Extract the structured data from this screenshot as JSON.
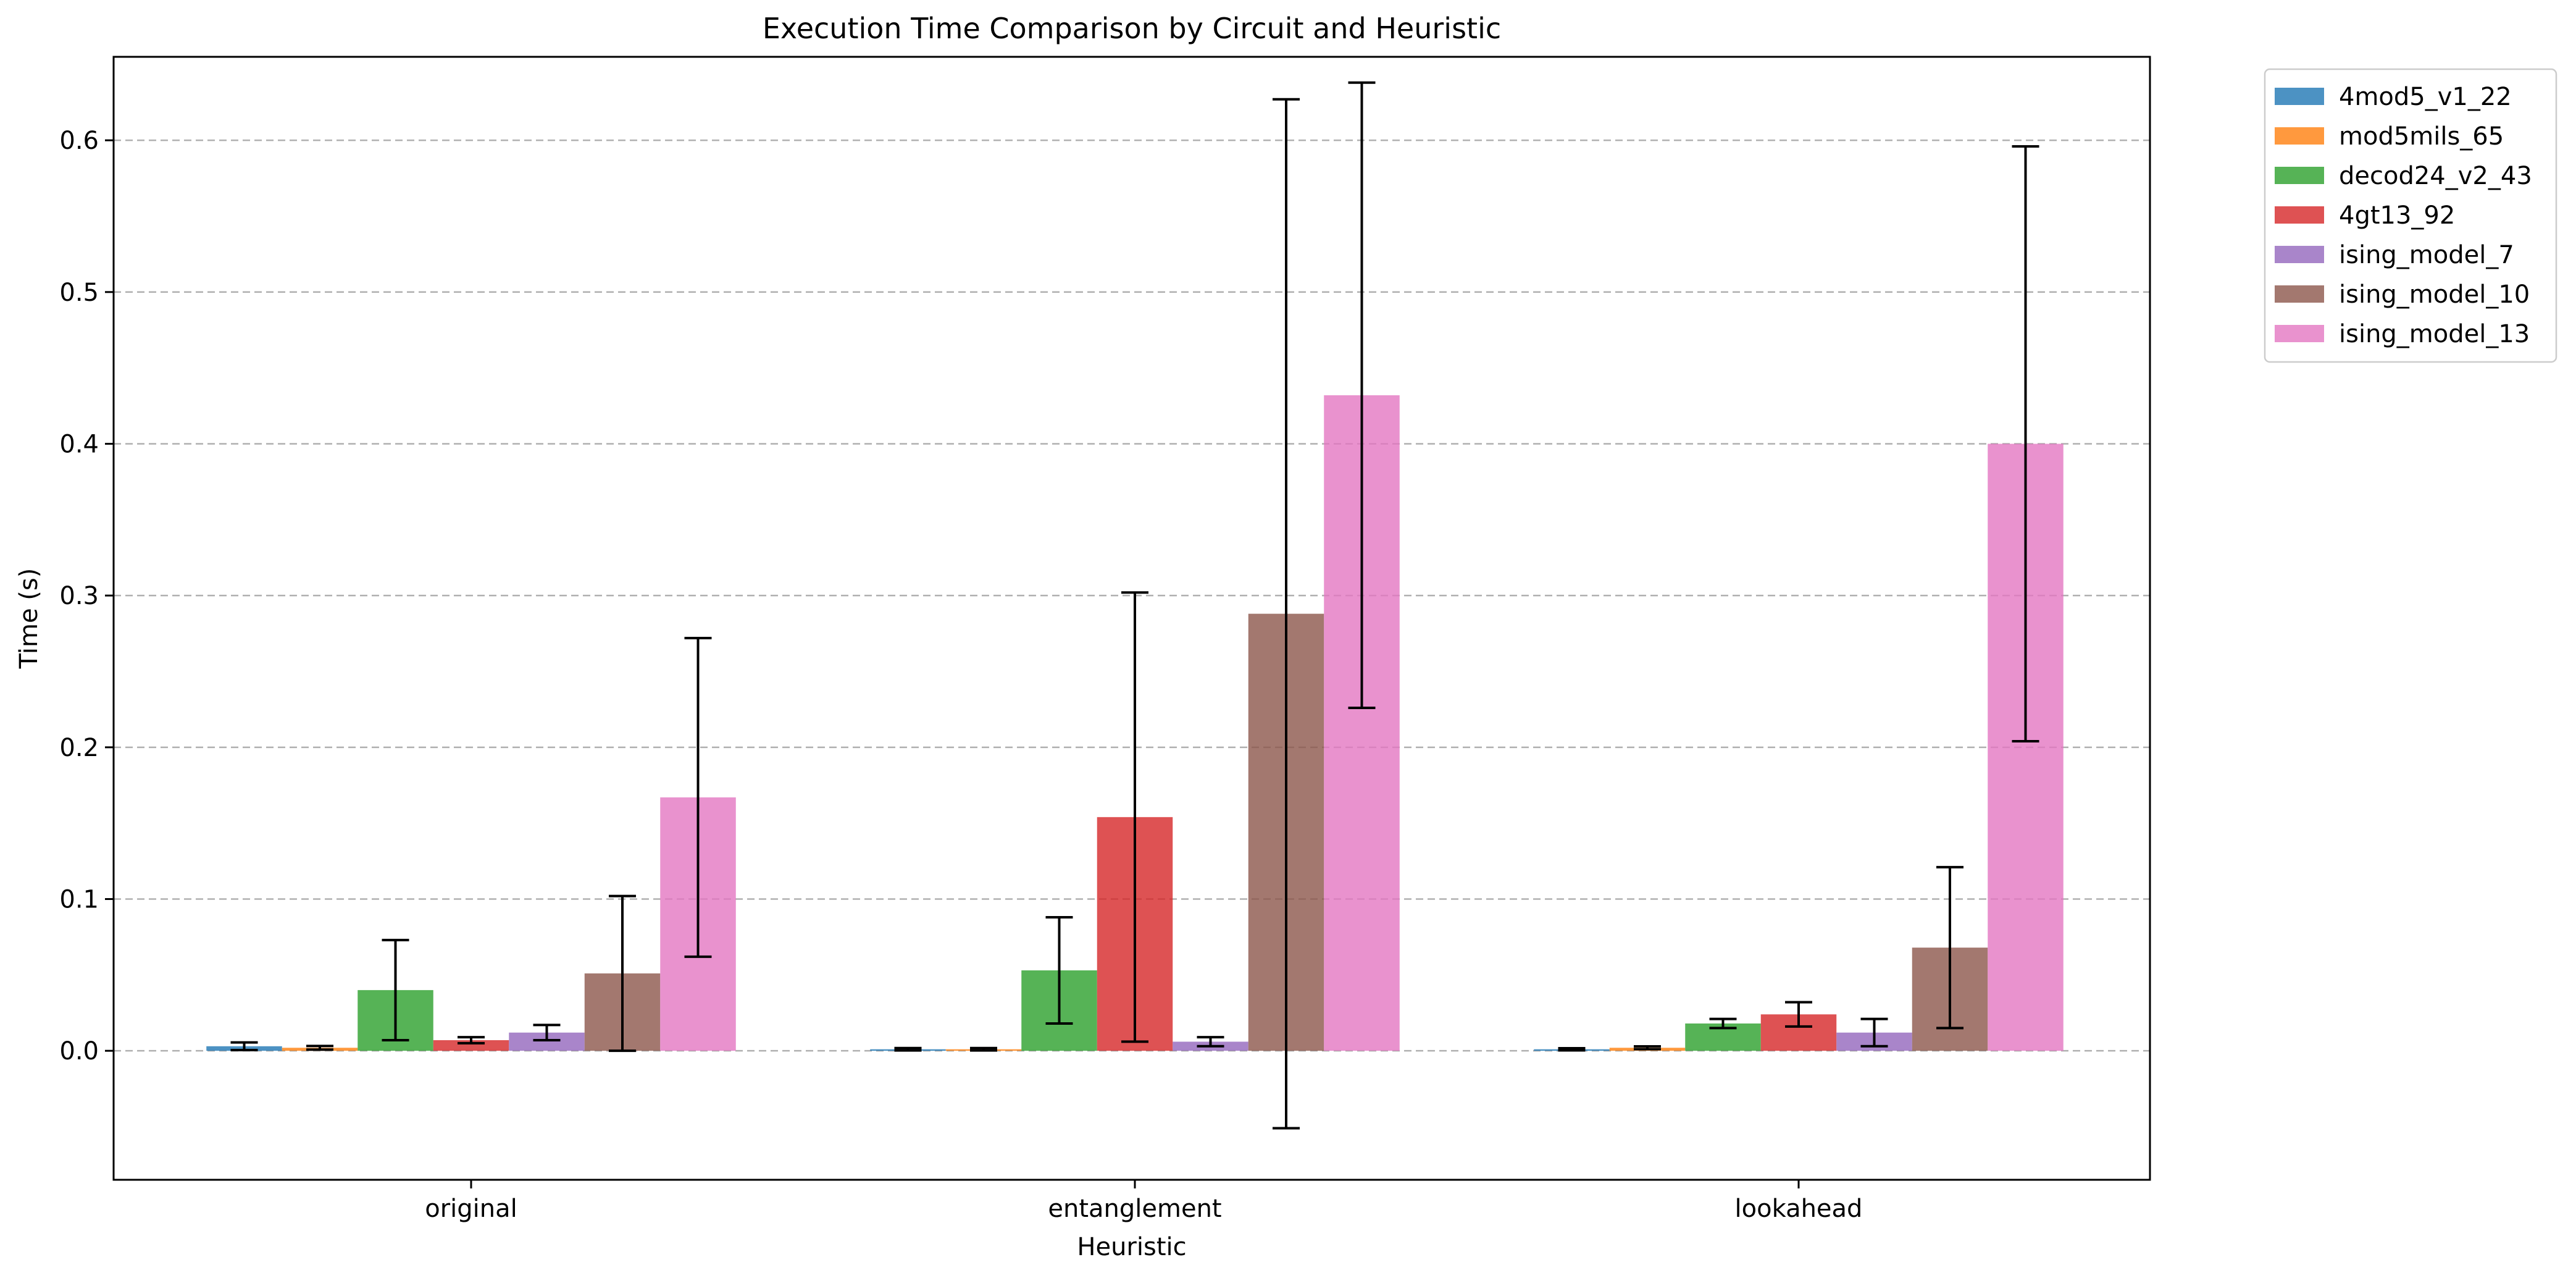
{
  "chart_data": {
    "type": "bar",
    "title": "Execution Time Comparison by Circuit and Heuristic",
    "xlabel": "Heuristic",
    "ylabel": "Time (s)",
    "categories": [
      "original",
      "entanglement",
      "lookahead"
    ],
    "ylim": [
      -0.085,
      0.655
    ],
    "yticks": [
      0.0,
      0.1,
      0.2,
      0.3,
      0.4,
      0.5,
      0.6
    ],
    "ytick_labels": [
      "0.0",
      "0.1",
      "0.2",
      "0.3",
      "0.4",
      "0.5",
      "0.6"
    ],
    "grid": "y-dashed",
    "legend_position": "outside-top-right",
    "series": [
      {
        "name": "4mod5_v1_22",
        "color": "#1f77b4",
        "values": [
          0.003,
          0.001,
          0.001
        ],
        "errors": [
          0.0025,
          0.0008,
          0.0007
        ]
      },
      {
        "name": "mod5mils_65",
        "color": "#ff7f0e",
        "values": [
          0.002,
          0.001,
          0.002
        ],
        "errors": [
          0.0012,
          0.0008,
          0.0009
        ]
      },
      {
        "name": "decod24_v2_43",
        "color": "#2ca02c",
        "values": [
          0.04,
          0.053,
          0.018
        ],
        "errors": [
          0.033,
          0.035,
          0.003
        ]
      },
      {
        "name": "4gt13_92",
        "color": "#d62728",
        "values": [
          0.007,
          0.154,
          0.024
        ],
        "errors": [
          0.002,
          0.148,
          0.008
        ]
      },
      {
        "name": "ising_model_7",
        "color": "#9467bd",
        "values": [
          0.012,
          0.006,
          0.012
        ],
        "errors": [
          0.005,
          0.003,
          0.009
        ]
      },
      {
        "name": "ising_model_10",
        "color": "#8c564b",
        "values": [
          0.051,
          0.288,
          0.068
        ],
        "errors": [
          0.051,
          0.339,
          0.053
        ]
      },
      {
        "name": "ising_model_13",
        "color": "#e377c2",
        "values": [
          0.167,
          0.432,
          0.4
        ],
        "errors": [
          0.105,
          0.206,
          0.196
        ]
      }
    ]
  }
}
